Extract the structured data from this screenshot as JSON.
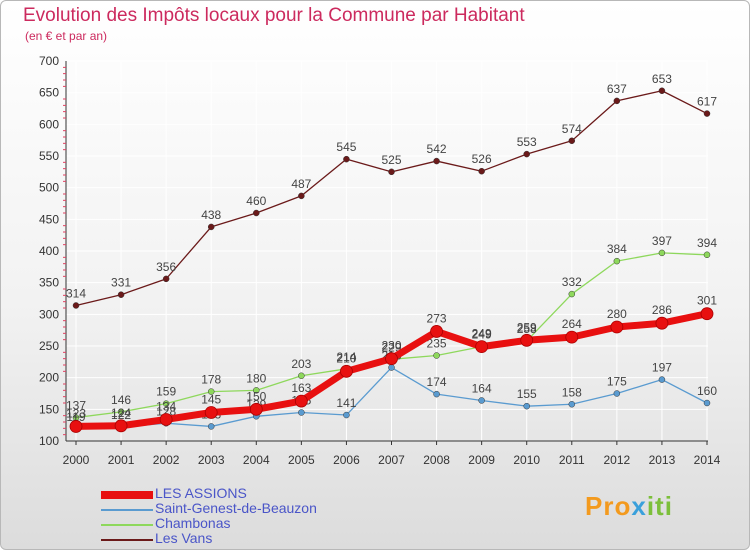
{
  "header": {
    "title": "Evolution des Impôts locaux pour la Commune par Habitant",
    "subtitle": "(en € et par an)"
  },
  "logo": {
    "part1": "Pro",
    "part2": "x",
    "part3": "iti"
  },
  "chart_data": {
    "type": "line",
    "title": "Evolution des Impôts locaux pour la Commune par Habitant",
    "subtitle": "(en € et par an)",
    "x": [
      "2000",
      "2001",
      "2002",
      "2003",
      "2004",
      "2005",
      "2006",
      "2007",
      "2008",
      "2009",
      "2010",
      "2011",
      "2012",
      "2013",
      "2014"
    ],
    "ylim": [
      100,
      700
    ],
    "yticks": [
      100,
      150,
      200,
      250,
      300,
      350,
      400,
      450,
      500,
      550,
      600,
      650,
      700
    ],
    "grid": true,
    "legend_position": "bottom-left",
    "series": [
      {
        "name": "Les Vans",
        "color": "#6b1a1a",
        "values": [
          314,
          331,
          356,
          438,
          460,
          487,
          545,
          525,
          542,
          526,
          553,
          574,
          637,
          653,
          617
        ]
      },
      {
        "name": "Chambonas",
        "color": "#8ed85c",
        "values": [
          137,
          146,
          159,
          178,
          180,
          203,
          214,
          229,
          235,
          249,
          258,
          332,
          384,
          397,
          394
        ]
      },
      {
        "name": "Saint-Genest-de-Beauzon",
        "color": "#5a9bd0",
        "values": [
          119,
          122,
          128,
          123,
          139,
          145,
          141,
          216,
          174,
          164,
          155,
          158,
          175,
          197,
          160
        ]
      },
      {
        "name": "LES ASSIONS",
        "color": "#e81010",
        "values": [
          123,
          124,
          134,
          145,
          150,
          163,
          210,
          230,
          273,
          249,
          259,
          264,
          280,
          286,
          301
        ]
      }
    ],
    "legend": [
      "LES ASSIONS",
      "Saint-Genest-de-Beauzon",
      "Chambonas",
      "Les Vans"
    ]
  }
}
